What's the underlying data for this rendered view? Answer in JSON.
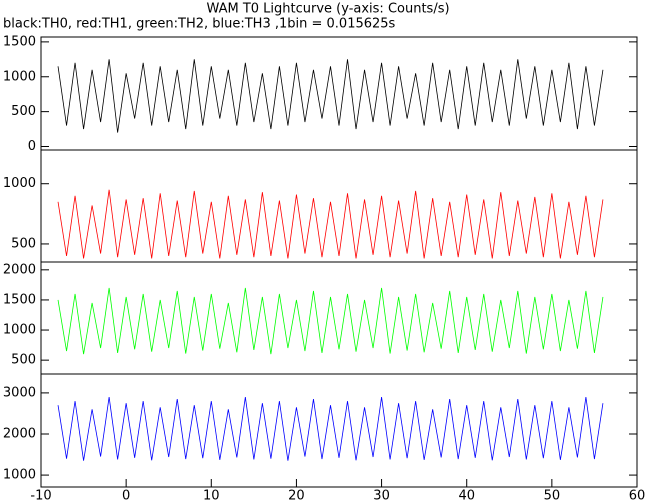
{
  "chart_data": [
    {
      "type": "line",
      "title": "WAM T0 Lightcurve (y-axis: Counts/s)",
      "subtitle": "black:TH0, red:TH1, green:TH2, blue:TH3 ,1bin = 0.015625s",
      "x": [
        -8,
        -7,
        -6,
        -5,
        -4,
        -3,
        -2,
        -1,
        0,
        1,
        2,
        3,
        4,
        5,
        6,
        7,
        8,
        9,
        10,
        11,
        12,
        13,
        14,
        15,
        16,
        17,
        18,
        19,
        20,
        21,
        22,
        23,
        24,
        25,
        26,
        27,
        28,
        29,
        30,
        31,
        32,
        33,
        34,
        35,
        36,
        37,
        38,
        39,
        40,
        41,
        42,
        43,
        44,
        45,
        46,
        47,
        48,
        49,
        50,
        51,
        52,
        53,
        54,
        55,
        56
      ],
      "series": [
        {
          "color": "#000000",
          "values": [
            1150,
            300,
            1200,
            250,
            1100,
            350,
            1250,
            200,
            1050,
            400,
            1200,
            300,
            1150,
            350,
            1100,
            250,
            1250,
            300,
            1150,
            400,
            1100,
            300,
            1200,
            350,
            1050,
            250,
            1150,
            300,
            1200,
            350,
            1100,
            400,
            1150,
            300,
            1250,
            250,
            1100,
            350,
            1200,
            300,
            1150,
            400,
            1050,
            300,
            1200,
            350,
            1100,
            250,
            1150,
            300,
            1200,
            350,
            1100,
            300,
            1250,
            400,
            1150,
            300,
            1100,
            350,
            1200,
            250,
            1150,
            300,
            1100
          ]
        }
      ],
      "xlim": [
        -10,
        60
      ],
      "ylim": [
        -50,
        1570
      ],
      "yticks": [
        0,
        500,
        1000,
        1500
      ]
    },
    {
      "type": "line",
      "x": [
        -8,
        -7,
        -6,
        -5,
        -4,
        -3,
        -2,
        -1,
        0,
        1,
        2,
        3,
        4,
        5,
        6,
        7,
        8,
        9,
        10,
        11,
        12,
        13,
        14,
        15,
        16,
        17,
        18,
        19,
        20,
        21,
        22,
        23,
        24,
        25,
        26,
        27,
        28,
        29,
        30,
        31,
        32,
        33,
        34,
        35,
        36,
        37,
        38,
        39,
        40,
        41,
        42,
        43,
        44,
        45,
        46,
        47,
        48,
        49,
        50,
        51,
        52,
        53,
        54,
        55,
        56
      ],
      "series": [
        {
          "color": "#ff0000",
          "values": [
            850,
            400,
            900,
            380,
            820,
            420,
            950,
            390,
            870,
            410,
            880,
            380,
            920,
            400,
            860,
            390,
            940,
            420,
            850,
            380,
            900,
            410,
            870,
            390,
            930,
            400,
            860,
            380,
            910,
            420,
            880,
            390,
            850,
            400,
            920,
            380,
            870,
            410,
            900,
            390,
            860,
            420,
            940,
            380,
            880,
            400,
            850,
            390,
            910,
            410,
            870,
            380,
            930,
            400,
            860,
            420,
            890,
            390,
            920,
            380,
            850,
            410,
            900,
            390,
            870
          ]
        }
      ],
      "xlim": [
        -10,
        60
      ],
      "ylim": [
        350,
        1280
      ],
      "yticks": [
        500,
        1000
      ]
    },
    {
      "type": "line",
      "x": [
        -8,
        -7,
        -6,
        -5,
        -4,
        -3,
        -2,
        -1,
        0,
        1,
        2,
        3,
        4,
        5,
        6,
        7,
        8,
        9,
        10,
        11,
        12,
        13,
        14,
        15,
        16,
        17,
        18,
        19,
        20,
        21,
        22,
        23,
        24,
        25,
        26,
        27,
        28,
        29,
        30,
        31,
        32,
        33,
        34,
        35,
        36,
        37,
        38,
        39,
        40,
        41,
        42,
        43,
        44,
        45,
        46,
        47,
        48,
        49,
        50,
        51,
        52,
        53,
        54,
        55,
        56
      ],
      "series": [
        {
          "color": "#00ff00",
          "values": [
            1500,
            650,
            1600,
            600,
            1450,
            700,
            1700,
            620,
            1550,
            680,
            1600,
            640,
            1500,
            700,
            1650,
            610,
            1550,
            660,
            1600,
            690,
            1450,
            630,
            1700,
            670,
            1550,
            600,
            1600,
            700,
            1500,
            650,
            1650,
            620,
            1550,
            680,
            1600,
            640,
            1500,
            700,
            1700,
            610,
            1550,
            660,
            1600,
            630,
            1450,
            690,
            1650,
            620,
            1550,
            670,
            1600,
            640,
            1500,
            700,
            1650,
            610,
            1550,
            680,
            1600,
            650,
            1500,
            690,
            1650,
            620,
            1550
          ]
        }
      ],
      "xlim": [
        -10,
        60
      ],
      "ylim": [
        270,
        2130
      ],
      "yticks": [
        500,
        1000,
        1500,
        2000
      ]
    },
    {
      "type": "line",
      "x": [
        -8,
        -7,
        -6,
        -5,
        -4,
        -3,
        -2,
        -1,
        0,
        1,
        2,
        3,
        4,
        5,
        6,
        7,
        8,
        9,
        10,
        11,
        12,
        13,
        14,
        15,
        16,
        17,
        18,
        19,
        20,
        21,
        22,
        23,
        24,
        25,
        26,
        27,
        28,
        29,
        30,
        31,
        32,
        33,
        34,
        35,
        36,
        37,
        38,
        39,
        40,
        41,
        42,
        43,
        44,
        45,
        46,
        47,
        48,
        49,
        50,
        51,
        52,
        53,
        54,
        55,
        56
      ],
      "series": [
        {
          "color": "#0000ff",
          "values": [
            2700,
            1400,
            2800,
            1350,
            2600,
            1450,
            2900,
            1380,
            2750,
            1420,
            2800,
            1360,
            2650,
            1440,
            2850,
            1390,
            2700,
            1410,
            2800,
            1370,
            2600,
            1430,
            2900,
            1380,
            2750,
            1400,
            2800,
            1350,
            2650,
            1450,
            2850,
            1390,
            2700,
            1420,
            2800,
            1360,
            2650,
            1440,
            2900,
            1380,
            2750,
            1410,
            2800,
            1370,
            2600,
            1430,
            2850,
            1390,
            2700,
            1420,
            2800,
            1360,
            2650,
            1440,
            2850,
            1380,
            2700,
            1410,
            2800,
            1370,
            2650,
            1430,
            2900,
            1390,
            2750
          ]
        }
      ],
      "xlim": [
        -10,
        60
      ],
      "xticks": [
        -10,
        0,
        10,
        20,
        30,
        40,
        50,
        60
      ],
      "ylim": [
        710,
        3460
      ],
      "yticks": [
        1000,
        2000,
        3000
      ]
    }
  ]
}
